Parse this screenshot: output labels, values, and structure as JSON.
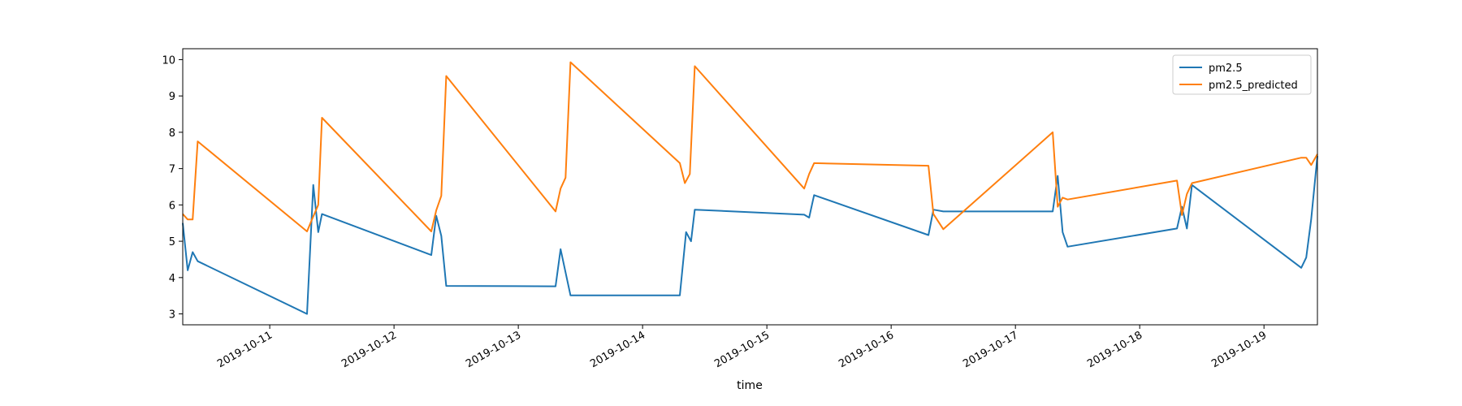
{
  "chart_data": {
    "type": "line",
    "title": "",
    "xlabel": "time",
    "ylabel": "",
    "x_tick_labels": [
      "2019-10-11",
      "2019-10-12",
      "2019-10-13",
      "2019-10-14",
      "2019-10-15",
      "2019-10-16",
      "2019-10-17",
      "2019-10-18",
      "2019-10-19"
    ],
    "x_tick_values": [
      0.7,
      1.7,
      2.7,
      3.7,
      4.7,
      5.7,
      6.7,
      7.7,
      8.7
    ],
    "xlim": [
      0.0,
      9.13
    ],
    "ylim": [
      2.7,
      10.3
    ],
    "y_ticks": [
      3,
      4,
      5,
      6,
      7,
      8,
      9,
      10
    ],
    "grid": false,
    "legend_position": "upper right",
    "series": [
      {
        "name": "pm2.5",
        "color": "#1f77b4",
        "points": [
          [
            0.0,
            5.5
          ],
          [
            0.04,
            4.2
          ],
          [
            0.08,
            4.7
          ],
          [
            0.12,
            4.45
          ],
          [
            1.0,
            3.0
          ],
          [
            1.05,
            6.55
          ],
          [
            1.09,
            5.25
          ],
          [
            1.12,
            5.75
          ],
          [
            2.0,
            4.62
          ],
          [
            2.04,
            5.7
          ],
          [
            2.08,
            5.15
          ],
          [
            2.12,
            3.77
          ],
          [
            3.0,
            3.76
          ],
          [
            3.04,
            4.78
          ],
          [
            3.12,
            3.51
          ],
          [
            4.0,
            3.51
          ],
          [
            4.05,
            5.25
          ],
          [
            4.09,
            5.0
          ],
          [
            4.12,
            5.87
          ],
          [
            5.0,
            5.73
          ],
          [
            5.04,
            5.65
          ],
          [
            5.08,
            6.27
          ],
          [
            6.0,
            5.17
          ],
          [
            6.04,
            5.87
          ],
          [
            6.12,
            5.82
          ],
          [
            7.0,
            5.82
          ],
          [
            7.04,
            6.8
          ],
          [
            7.08,
            5.25
          ],
          [
            7.12,
            4.85
          ],
          [
            8.0,
            5.35
          ],
          [
            8.04,
            5.95
          ],
          [
            8.08,
            5.35
          ],
          [
            8.12,
            6.55
          ],
          [
            9.0,
            4.27
          ],
          [
            9.04,
            4.55
          ],
          [
            9.08,
            5.6
          ],
          [
            9.13,
            7.35
          ]
        ]
      },
      {
        "name": "pm2.5_predicted",
        "color": "#ff7f0e",
        "points": [
          [
            0.0,
            5.75
          ],
          [
            0.04,
            5.6
          ],
          [
            0.08,
            5.6
          ],
          [
            0.12,
            7.75
          ],
          [
            1.0,
            5.27
          ],
          [
            1.04,
            5.6
          ],
          [
            1.09,
            6.0
          ],
          [
            1.12,
            8.4
          ],
          [
            2.0,
            5.27
          ],
          [
            2.04,
            5.85
          ],
          [
            2.08,
            6.25
          ],
          [
            2.12,
            9.55
          ],
          [
            3.0,
            5.82
          ],
          [
            3.04,
            6.45
          ],
          [
            3.08,
            6.75
          ],
          [
            3.12,
            9.93
          ],
          [
            4.0,
            7.15
          ],
          [
            4.04,
            6.6
          ],
          [
            4.08,
            6.85
          ],
          [
            4.12,
            9.82
          ],
          [
            5.0,
            6.45
          ],
          [
            5.04,
            6.85
          ],
          [
            5.08,
            7.15
          ],
          [
            6.0,
            7.08
          ],
          [
            6.04,
            5.75
          ],
          [
            6.12,
            5.33
          ],
          [
            7.0,
            8.0
          ],
          [
            7.04,
            5.95
          ],
          [
            7.08,
            6.2
          ],
          [
            7.12,
            6.15
          ],
          [
            8.0,
            6.67
          ],
          [
            8.04,
            5.72
          ],
          [
            8.08,
            6.3
          ],
          [
            8.12,
            6.6
          ],
          [
            9.0,
            7.3
          ],
          [
            9.04,
            7.3
          ],
          [
            9.08,
            7.1
          ],
          [
            9.13,
            7.4
          ]
        ]
      }
    ]
  }
}
